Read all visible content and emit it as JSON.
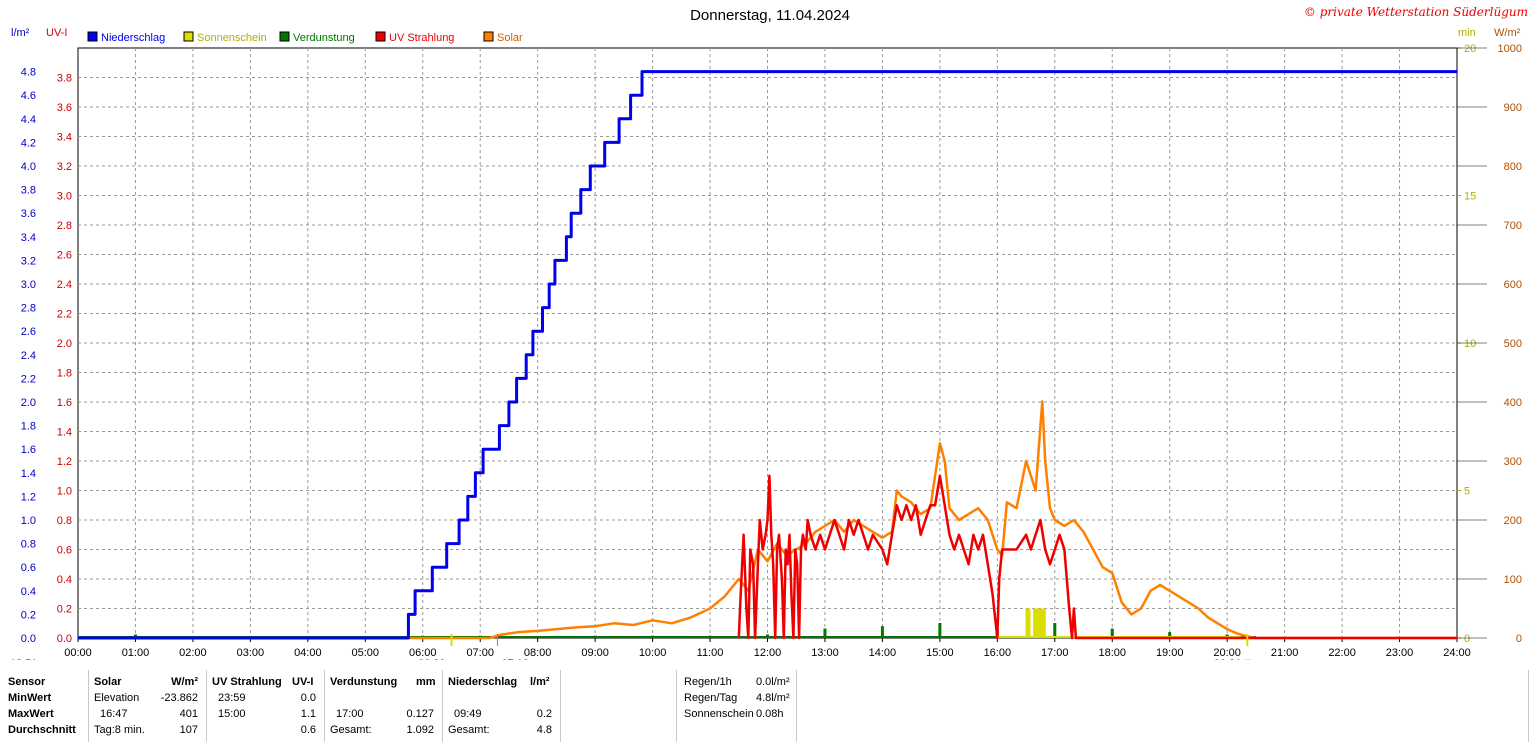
{
  "title": "Donnerstag, 11.04.2024",
  "copyright": "© private Wetterstation Süderlügum",
  "axis_labels": {
    "left_outer": "l/m²",
    "left_inner": "UV-I",
    "right_inner": "min",
    "right_outer": "W/m²"
  },
  "colors": {
    "niederschlag": "#0000ee",
    "sonnenschein": "#dddd00",
    "verdunstung": "#007700",
    "uv": "#ee0000",
    "solar": "#ff8000",
    "grid": "#999999"
  },
  "chart_data": {
    "type": "line",
    "title": "Donnerstag, 11.04.2024",
    "x_range": [
      "00:00",
      "24:00"
    ],
    "x_ticks": [
      "00:00",
      "01:00",
      "02:00",
      "03:00",
      "04:00",
      "05:00",
      "06:00",
      "07:00",
      "08:00",
      "09:00",
      "10:00",
      "11:00",
      "12:00",
      "13:00",
      "14:00",
      "15:00",
      "16:00",
      "17:00",
      "18:00",
      "19:00",
      "20:00",
      "21:00",
      "22:00",
      "23:00",
      "24:00"
    ],
    "axes": {
      "rain": {
        "label": "l/m²",
        "range": [
          0,
          5.0
        ],
        "ticks": [
          "0.0",
          "0.2",
          "0.4",
          "0.6",
          "0.8",
          "1.0",
          "1.2",
          "1.4",
          "1.6",
          "1.8",
          "2.0",
          "2.2",
          "2.4",
          "2.6",
          "2.8",
          "3.0",
          "3.2",
          "3.4",
          "3.6",
          "3.8",
          "4.0",
          "4.2",
          "4.4",
          "4.6",
          "4.8"
        ]
      },
      "uv": {
        "label": "UV-I",
        "range": [
          0,
          4.0
        ],
        "ticks": [
          "0.0",
          "0.2",
          "0.4",
          "0.6",
          "0.8",
          "1.0",
          "1.2",
          "1.4",
          "1.6",
          "1.8",
          "2.0",
          "2.2",
          "2.4",
          "2.6",
          "2.8",
          "3.0",
          "3.2",
          "3.4",
          "3.6",
          "3.8"
        ]
      },
      "sun_min": {
        "label": "min",
        "range": [
          0,
          20
        ],
        "ticks": [
          "0",
          "5",
          "10",
          "15",
          "20"
        ]
      },
      "solar": {
        "label": "W/m²",
        "range": [
          0,
          1000
        ],
        "ticks": [
          "0",
          "100",
          "200",
          "300",
          "400",
          "500",
          "600",
          "700",
          "800",
          "900",
          "1000"
        ]
      }
    },
    "legend_placement": "top-left",
    "series": [
      {
        "name": "Niederschlag",
        "axis": "rain",
        "step": true,
        "points": [
          [
            "00:00",
            0
          ],
          [
            "05:45",
            0
          ],
          [
            "05:45",
            0.2
          ],
          [
            "05:52",
            0.2
          ],
          [
            "05:52",
            0.4
          ],
          [
            "06:10",
            0.4
          ],
          [
            "06:10",
            0.6
          ],
          [
            "06:25",
            0.6
          ],
          [
            "06:25",
            0.8
          ],
          [
            "06:38",
            0.8
          ],
          [
            "06:38",
            1.0
          ],
          [
            "06:47",
            1.0
          ],
          [
            "06:47",
            1.2
          ],
          [
            "06:55",
            1.2
          ],
          [
            "06:55",
            1.4
          ],
          [
            "07:03",
            1.4
          ],
          [
            "07:03",
            1.6
          ],
          [
            "07:20",
            1.6
          ],
          [
            "07:20",
            1.8
          ],
          [
            "07:30",
            1.8
          ],
          [
            "07:30",
            2.0
          ],
          [
            "07:38",
            2.0
          ],
          [
            "07:38",
            2.2
          ],
          [
            "07:48",
            2.2
          ],
          [
            "07:48",
            2.4
          ],
          [
            "07:55",
            2.4
          ],
          [
            "07:55",
            2.6
          ],
          [
            "08:05",
            2.6
          ],
          [
            "08:05",
            2.8
          ],
          [
            "08:12",
            2.8
          ],
          [
            "08:12",
            3.0
          ],
          [
            "08:18",
            3.0
          ],
          [
            "08:18",
            3.2
          ],
          [
            "08:30",
            3.2
          ],
          [
            "08:30",
            3.4
          ],
          [
            "08:35",
            3.4
          ],
          [
            "08:35",
            3.6
          ],
          [
            "08:45",
            3.6
          ],
          [
            "08:45",
            3.8
          ],
          [
            "08:55",
            3.8
          ],
          [
            "08:55",
            4.0
          ],
          [
            "09:10",
            4.0
          ],
          [
            "09:10",
            4.2
          ],
          [
            "09:25",
            4.2
          ],
          [
            "09:25",
            4.4
          ],
          [
            "09:37",
            4.4
          ],
          [
            "09:37",
            4.6
          ],
          [
            "09:49",
            4.6
          ],
          [
            "09:49",
            4.8
          ],
          [
            "24:00",
            4.8
          ]
        ]
      },
      {
        "name": "Sonnenschein",
        "axis": "sun_min",
        "bars": [
          [
            "16:32",
            1.0
          ],
          [
            "16:40",
            1.0
          ],
          [
            "16:44",
            1.0
          ],
          [
            "16:48",
            1.0
          ]
        ],
        "baseline": [
          [
            "16:00",
            "20:15"
          ]
        ]
      },
      {
        "name": "Verdunstung",
        "axis": "rain",
        "bars": [
          [
            "01:00",
            0.03
          ],
          [
            "06:00",
            0.02
          ],
          [
            "07:00",
            0.02
          ],
          [
            "09:00",
            0.02
          ],
          [
            "10:00",
            0.02
          ],
          [
            "11:00",
            0.02
          ],
          [
            "12:00",
            0.03
          ],
          [
            "13:00",
            0.08
          ],
          [
            "14:00",
            0.1
          ],
          [
            "15:00",
            0.127
          ],
          [
            "16:00",
            0.08
          ],
          [
            "17:00",
            0.127
          ],
          [
            "18:00",
            0.08
          ],
          [
            "19:00",
            0.05
          ],
          [
            "20:00",
            0.03
          ]
        ],
        "baseline": [
          [
            "00:00",
            "20:30"
          ]
        ]
      },
      {
        "name": "UV Strahlung",
        "axis": "uv",
        "points": [
          [
            "11:30",
            0
          ],
          [
            "11:32",
            0.3
          ],
          [
            "11:35",
            0.7
          ],
          [
            "11:38",
            0.2
          ],
          [
            "11:40",
            0
          ],
          [
            "11:42",
            0.6
          ],
          [
            "11:45",
            0.5
          ],
          [
            "11:47",
            0
          ],
          [
            "11:50",
            0.5
          ],
          [
            "11:52",
            0.8
          ],
          [
            "11:55",
            0.6
          ],
          [
            "11:58",
            0.7
          ],
          [
            "12:00",
            0.8
          ],
          [
            "12:02",
            1.1
          ],
          [
            "12:04",
            0.7
          ],
          [
            "12:06",
            0.5
          ],
          [
            "12:08",
            0
          ],
          [
            "12:10",
            0.6
          ],
          [
            "12:12",
            0.7
          ],
          [
            "12:15",
            0.4
          ],
          [
            "12:17",
            0
          ],
          [
            "12:19",
            0.6
          ],
          [
            "12:21",
            0.5
          ],
          [
            "12:23",
            0.7
          ],
          [
            "12:25",
            0.3
          ],
          [
            "12:27",
            0
          ],
          [
            "12:29",
            0.6
          ],
          [
            "12:31",
            0.5
          ],
          [
            "12:33",
            0
          ],
          [
            "12:35",
            0.6
          ],
          [
            "12:37",
            0.7
          ],
          [
            "12:40",
            0.6
          ],
          [
            "12:42",
            0.8
          ],
          [
            "12:45",
            0.7
          ],
          [
            "12:50",
            0.6
          ],
          [
            "12:55",
            0.7
          ],
          [
            "13:00",
            0.6
          ],
          [
            "13:05",
            0.7
          ],
          [
            "13:10",
            0.8
          ],
          [
            "13:15",
            0.7
          ],
          [
            "13:20",
            0.6
          ],
          [
            "13:25",
            0.8
          ],
          [
            "13:30",
            0.7
          ],
          [
            "13:35",
            0.8
          ],
          [
            "13:40",
            0.7
          ],
          [
            "13:45",
            0.6
          ],
          [
            "13:50",
            0.7
          ],
          [
            "14:00",
            0.6
          ],
          [
            "14:05",
            0.5
          ],
          [
            "14:10",
            0.7
          ],
          [
            "14:15",
            0.9
          ],
          [
            "14:20",
            0.8
          ],
          [
            "14:25",
            0.9
          ],
          [
            "14:30",
            0.8
          ],
          [
            "14:35",
            0.9
          ],
          [
            "14:40",
            0.7
          ],
          [
            "14:45",
            0.8
          ],
          [
            "14:50",
            0.9
          ],
          [
            "14:55",
            0.9
          ],
          [
            "15:00",
            1.1
          ],
          [
            "15:05",
            0.9
          ],
          [
            "15:10",
            0.7
          ],
          [
            "15:15",
            0.6
          ],
          [
            "15:20",
            0.7
          ],
          [
            "15:25",
            0.6
          ],
          [
            "15:30",
            0.5
          ],
          [
            "15:35",
            0.7
          ],
          [
            "15:40",
            0.6
          ],
          [
            "15:45",
            0.7
          ],
          [
            "15:50",
            0.5
          ],
          [
            "15:55",
            0.3
          ],
          [
            "16:00",
            0
          ],
          [
            "16:02",
            0.4
          ],
          [
            "16:05",
            0.6
          ],
          [
            "16:10",
            0.6
          ],
          [
            "16:20",
            0.6
          ],
          [
            "16:30",
            0.7
          ],
          [
            "16:35",
            0.6
          ],
          [
            "16:40",
            0.7
          ],
          [
            "16:45",
            0.8
          ],
          [
            "16:50",
            0.6
          ],
          [
            "16:55",
            0.5
          ],
          [
            "17:00",
            0.6
          ],
          [
            "17:05",
            0.7
          ],
          [
            "17:10",
            0.6
          ],
          [
            "17:15",
            0.2
          ],
          [
            "17:18",
            0
          ],
          [
            "17:20",
            0.2
          ],
          [
            "17:22",
            0
          ],
          [
            "24:00",
            0
          ]
        ]
      },
      {
        "name": "Solar",
        "axis": "solar",
        "points": [
          [
            "00:00",
            0
          ],
          [
            "07:10",
            0
          ],
          [
            "07:20",
            5
          ],
          [
            "07:40",
            10
          ],
          [
            "08:00",
            12
          ],
          [
            "08:20",
            15
          ],
          [
            "08:40",
            18
          ],
          [
            "09:00",
            20
          ],
          [
            "09:20",
            25
          ],
          [
            "09:40",
            22
          ],
          [
            "10:00",
            30
          ],
          [
            "10:20",
            25
          ],
          [
            "10:40",
            35
          ],
          [
            "11:00",
            50
          ],
          [
            "11:15",
            70
          ],
          [
            "11:30",
            100
          ],
          [
            "11:40",
            80
          ],
          [
            "11:50",
            150
          ],
          [
            "12:00",
            130
          ],
          [
            "12:10",
            160
          ],
          [
            "12:20",
            140
          ],
          [
            "12:30",
            150
          ],
          [
            "12:40",
            160
          ],
          [
            "12:50",
            180
          ],
          [
            "13:00",
            190
          ],
          [
            "13:10",
            200
          ],
          [
            "13:20",
            180
          ],
          [
            "13:30",
            200
          ],
          [
            "13:40",
            190
          ],
          [
            "13:50",
            180
          ],
          [
            "14:00",
            170
          ],
          [
            "14:10",
            180
          ],
          [
            "14:15",
            250
          ],
          [
            "14:20",
            240
          ],
          [
            "14:30",
            230
          ],
          [
            "14:40",
            210
          ],
          [
            "14:50",
            220
          ],
          [
            "15:00",
            330
          ],
          [
            "15:05",
            300
          ],
          [
            "15:10",
            220
          ],
          [
            "15:20",
            200
          ],
          [
            "15:30",
            210
          ],
          [
            "15:40",
            220
          ],
          [
            "15:50",
            200
          ],
          [
            "16:00",
            150
          ],
          [
            "16:05",
            140
          ],
          [
            "16:10",
            230
          ],
          [
            "16:20",
            220
          ],
          [
            "16:30",
            300
          ],
          [
            "16:40",
            250
          ],
          [
            "16:47",
            401
          ],
          [
            "16:50",
            300
          ],
          [
            "16:55",
            220
          ],
          [
            "17:00",
            200
          ],
          [
            "17:10",
            190
          ],
          [
            "17:20",
            200
          ],
          [
            "17:30",
            180
          ],
          [
            "17:40",
            150
          ],
          [
            "17:50",
            120
          ],
          [
            "18:00",
            110
          ],
          [
            "18:10",
            60
          ],
          [
            "18:20",
            40
          ],
          [
            "18:30",
            50
          ],
          [
            "18:40",
            80
          ],
          [
            "18:50",
            90
          ],
          [
            "19:00",
            80
          ],
          [
            "19:10",
            70
          ],
          [
            "19:20",
            60
          ],
          [
            "19:30",
            50
          ],
          [
            "19:40",
            35
          ],
          [
            "19:50",
            25
          ],
          [
            "20:00",
            15
          ],
          [
            "20:10",
            8
          ],
          [
            "20:20",
            3
          ],
          [
            "20:30",
            0
          ],
          [
            "24:00",
            0
          ]
        ]
      }
    ],
    "markers": {
      "sunrise": "06:30",
      "sunset": "20:21",
      "moonrise": "07:18",
      "left_marker": "13:51"
    }
  },
  "legend": [
    {
      "key": "niederschlag",
      "label": "Niederschlag"
    },
    {
      "key": "sonnenschein",
      "label": "Sonnenschein"
    },
    {
      "key": "verdunstung",
      "label": "Verdunstung"
    },
    {
      "key": "uv",
      "label": "UV Strahlung"
    },
    {
      "key": "solar",
      "label": "Solar"
    }
  ],
  "table": {
    "row_labels": [
      "Sensor",
      "MinWert",
      "MaxWert",
      "Durchschnitt"
    ],
    "solar": {
      "header": "Solar",
      "unit": "W/m²",
      "min_time": "Elevation",
      "min_val": "-23.862",
      "max_time": "16:47",
      "max_val": "401",
      "avg_time": "Tag:8 min.",
      "avg_val": "107"
    },
    "uv": {
      "header": "UV Strahlung",
      "unit": "UV-I",
      "min_time": "23:59",
      "min_val": "0.0",
      "max_time": "15:00",
      "max_val": "1.1",
      "avg_val": "0.6"
    },
    "verdunstung": {
      "header": "Verdunstung",
      "unit": "mm",
      "max_time": "17:00",
      "max_val": "0.127",
      "avg_time": "Gesamt:",
      "avg_val": "1.092"
    },
    "niederschlag": {
      "header": "Niederschlag",
      "unit": "l/m²",
      "max_time": "09:49",
      "max_val": "0.2",
      "avg_time": "Gesamt:",
      "avg_val": "4.8"
    },
    "summary": [
      {
        "label": "Regen/1h",
        "value": "0.0l/m²"
      },
      {
        "label": "Regen/Tag",
        "value": "4.8l/m²"
      },
      {
        "label": "Sonnenschein",
        "value": "0.08h"
      }
    ]
  }
}
